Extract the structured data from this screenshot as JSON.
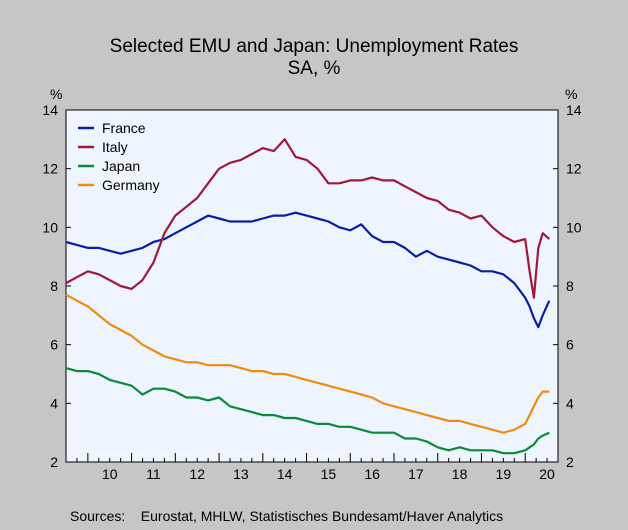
{
  "chart_data": {
    "type": "line",
    "title": "Selected EMU and Japan: Unemployment Rates",
    "subtitle": "SA, %",
    "ylabel_left": "%",
    "ylabel_right": "%",
    "xlabel": "",
    "ylim": [
      2,
      14
    ],
    "yticks": [
      2,
      4,
      6,
      8,
      10,
      12,
      14
    ],
    "xlim": [
      2009.5,
      2020.75
    ],
    "xtick_labels": [
      "10",
      "11",
      "12",
      "13",
      "14",
      "15",
      "16",
      "17",
      "18",
      "19",
      "20"
    ],
    "grid": false,
    "legend": "top-left",
    "source": "Sources:    Eurostat, MHLW, Statistisches Bundesamt/Haver Analytics",
    "series": [
      {
        "name": "France",
        "color": "#0a1fa8",
        "x": [
          2009.5,
          2009.75,
          2010.0,
          2010.25,
          2010.5,
          2010.75,
          2011.0,
          2011.25,
          2011.5,
          2011.75,
          2012.0,
          2012.25,
          2012.5,
          2012.75,
          2013.0,
          2013.25,
          2013.5,
          2013.75,
          2014.0,
          2014.25,
          2014.5,
          2014.75,
          2015.0,
          2015.25,
          2015.5,
          2015.75,
          2016.0,
          2016.25,
          2016.5,
          2016.75,
          2017.0,
          2017.25,
          2017.5,
          2017.75,
          2018.0,
          2018.25,
          2018.5,
          2018.75,
          2019.0,
          2019.25,
          2019.5,
          2019.75,
          2020.0,
          2020.1,
          2020.2,
          2020.3,
          2020.4,
          2020.55
        ],
        "y": [
          9.5,
          9.4,
          9.3,
          9.3,
          9.2,
          9.1,
          9.2,
          9.3,
          9.5,
          9.6,
          9.8,
          10.0,
          10.2,
          10.4,
          10.3,
          10.2,
          10.2,
          10.2,
          10.3,
          10.4,
          10.4,
          10.5,
          10.4,
          10.3,
          10.2,
          10.0,
          9.9,
          10.1,
          9.7,
          9.5,
          9.5,
          9.3,
          9.0,
          9.2,
          9.0,
          8.9,
          8.8,
          8.7,
          8.5,
          8.5,
          8.4,
          8.1,
          7.6,
          7.3,
          6.9,
          6.6,
          7.0,
          7.5
        ]
      },
      {
        "name": "Italy",
        "color": "#a0183c",
        "x": [
          2009.5,
          2009.75,
          2010.0,
          2010.25,
          2010.5,
          2010.75,
          2011.0,
          2011.25,
          2011.5,
          2011.75,
          2012.0,
          2012.25,
          2012.5,
          2012.75,
          2013.0,
          2013.25,
          2013.5,
          2013.75,
          2014.0,
          2014.25,
          2014.5,
          2014.75,
          2015.0,
          2015.25,
          2015.5,
          2015.75,
          2016.0,
          2016.25,
          2016.5,
          2016.75,
          2017.0,
          2017.25,
          2017.5,
          2017.75,
          2018.0,
          2018.25,
          2018.5,
          2018.75,
          2019.0,
          2019.25,
          2019.5,
          2019.75,
          2020.0,
          2020.1,
          2020.2,
          2020.3,
          2020.4,
          2020.55
        ],
        "y": [
          8.1,
          8.3,
          8.5,
          8.4,
          8.2,
          8.0,
          7.9,
          8.2,
          8.8,
          9.8,
          10.4,
          10.7,
          11.0,
          11.5,
          12.0,
          12.2,
          12.3,
          12.5,
          12.7,
          12.6,
          13.0,
          12.4,
          12.3,
          12.0,
          11.5,
          11.5,
          11.6,
          11.6,
          11.7,
          11.6,
          11.6,
          11.4,
          11.2,
          11.0,
          10.9,
          10.6,
          10.5,
          10.3,
          10.4,
          10.0,
          9.7,
          9.5,
          9.6,
          8.5,
          7.6,
          9.3,
          9.8,
          9.6
        ]
      },
      {
        "name": "Japan",
        "color": "#0b8a3a",
        "x": [
          2009.5,
          2009.75,
          2010.0,
          2010.25,
          2010.5,
          2010.75,
          2011.0,
          2011.25,
          2011.5,
          2011.75,
          2012.0,
          2012.25,
          2012.5,
          2012.75,
          2013.0,
          2013.25,
          2013.5,
          2013.75,
          2014.0,
          2014.25,
          2014.5,
          2014.75,
          2015.0,
          2015.25,
          2015.5,
          2015.75,
          2016.0,
          2016.25,
          2016.5,
          2016.75,
          2017.0,
          2017.25,
          2017.5,
          2017.75,
          2018.0,
          2018.25,
          2018.5,
          2018.75,
          2019.0,
          2019.25,
          2019.5,
          2019.75,
          2020.0,
          2020.1,
          2020.2,
          2020.3,
          2020.4,
          2020.55
        ],
        "y": [
          5.2,
          5.1,
          5.1,
          5.0,
          4.8,
          4.7,
          4.6,
          4.3,
          4.5,
          4.5,
          4.4,
          4.2,
          4.2,
          4.1,
          4.2,
          3.9,
          3.8,
          3.7,
          3.6,
          3.6,
          3.5,
          3.5,
          3.4,
          3.3,
          3.3,
          3.2,
          3.2,
          3.1,
          3.0,
          3.0,
          3.0,
          2.8,
          2.8,
          2.7,
          2.5,
          2.4,
          2.5,
          2.4,
          2.4,
          2.4,
          2.3,
          2.3,
          2.4,
          2.5,
          2.6,
          2.8,
          2.9,
          3.0
        ]
      },
      {
        "name": "Germany",
        "color": "#f08a10",
        "x": [
          2009.5,
          2009.75,
          2010.0,
          2010.25,
          2010.5,
          2010.75,
          2011.0,
          2011.25,
          2011.5,
          2011.75,
          2012.0,
          2012.25,
          2012.5,
          2012.75,
          2013.0,
          2013.25,
          2013.5,
          2013.75,
          2014.0,
          2014.25,
          2014.5,
          2014.75,
          2015.0,
          2015.25,
          2015.5,
          2015.75,
          2016.0,
          2016.25,
          2016.5,
          2016.75,
          2017.0,
          2017.25,
          2017.5,
          2017.75,
          2018.0,
          2018.25,
          2018.5,
          2018.75,
          2019.0,
          2019.25,
          2019.5,
          2019.75,
          2020.0,
          2020.1,
          2020.2,
          2020.3,
          2020.4,
          2020.55
        ],
        "y": [
          7.7,
          7.5,
          7.3,
          7.0,
          6.7,
          6.5,
          6.3,
          6.0,
          5.8,
          5.6,
          5.5,
          5.4,
          5.4,
          5.3,
          5.3,
          5.3,
          5.2,
          5.1,
          5.1,
          5.0,
          5.0,
          4.9,
          4.8,
          4.7,
          4.6,
          4.5,
          4.4,
          4.3,
          4.2,
          4.0,
          3.9,
          3.8,
          3.7,
          3.6,
          3.5,
          3.4,
          3.4,
          3.3,
          3.2,
          3.1,
          3.0,
          3.1,
          3.3,
          3.6,
          3.9,
          4.2,
          4.4,
          4.4
        ]
      }
    ]
  }
}
